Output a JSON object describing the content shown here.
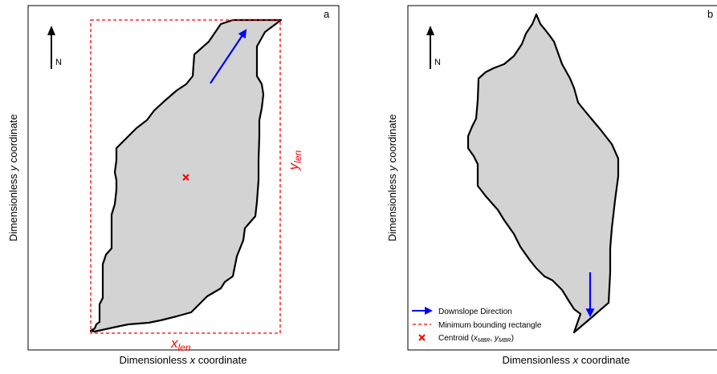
{
  "panels": [
    {
      "letter": "a",
      "xlabel_pre": "Dimensionless ",
      "xlabel_var": "x",
      "xlabel_post": " coordinate",
      "ylabel_pre": "Dimensionless ",
      "ylabel_var": "y",
      "ylabel_post": " coordinate"
    },
    {
      "letter": "b",
      "xlabel_pre": "Dimensionless ",
      "xlabel_var": "x",
      "xlabel_post": " coordinate",
      "ylabel_pre": "Dimensionless ",
      "ylabel_var": "y",
      "ylabel_post": " coordinate"
    }
  ],
  "north_label": "N",
  "xlen": {
    "base": "x",
    "sub": "len"
  },
  "ylen": {
    "base": "y",
    "sub": "len"
  },
  "legend": {
    "downslope": "Downslope Direction",
    "mbr": "Minimum bounding rectangle",
    "centroid_pre": "Centroid (",
    "centroid_x": "x",
    "centroid_x_sub": "MBR",
    "centroid_sep": ", ",
    "centroid_y": "y",
    "centroid_y_sub": "MBR",
    "centroid_post": ")"
  },
  "colors": {
    "polygon_fill": "#d3d3d3",
    "outline": "#000000",
    "arrow": "#0000ff",
    "mbr": "#ff0000",
    "centroid": "#ff0000"
  }
}
